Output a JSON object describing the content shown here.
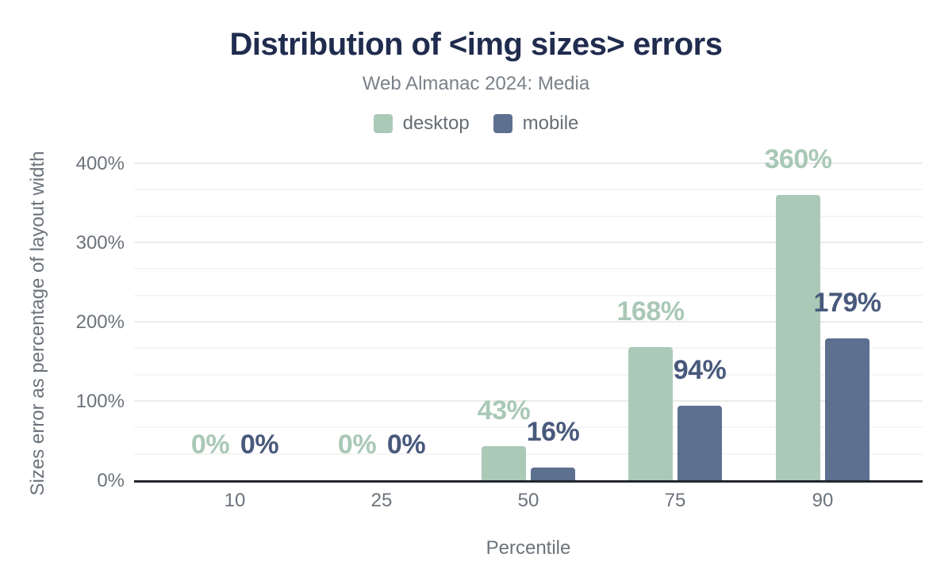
{
  "header": {
    "title": "Distribution of <img sizes> errors",
    "subtitle": "Web Almanac 2024: Media"
  },
  "legend": {
    "items": [
      {
        "label": "desktop",
        "color": "#abc9b7"
      },
      {
        "label": "mobile",
        "color": "#5d7090"
      }
    ]
  },
  "colors": {
    "title": "#202c4e",
    "subtitle": "#7a828a",
    "axis_text": "#6c737b",
    "axis_line": "#23272e",
    "desktop_bar": "#abc9b7",
    "mobile_bar": "#5d7090",
    "desktop_label": "#a9c8b6",
    "mobile_label": "#48597c",
    "gridline_major": "#ebebeb",
    "gridline_minor": "#f5f5f5"
  },
  "chart_data": {
    "type": "bar",
    "title": "Distribution of <img sizes> errors",
    "subtitle": "Web Almanac 2024: Media",
    "categories": [
      "10",
      "25",
      "50",
      "75",
      "90"
    ],
    "series": [
      {
        "name": "desktop",
        "color": "#abc9b7",
        "label_color": "#a9c8b6",
        "values": [
          0,
          0,
          43,
          168,
          360
        ],
        "data_labels": [
          "0%",
          "0%",
          "43%",
          "168%",
          "360%"
        ]
      },
      {
        "name": "mobile",
        "color": "#5d7090",
        "label_color": "#48597c",
        "values": [
          0,
          0,
          16,
          94,
          179
        ],
        "data_labels": [
          "0%",
          "0%",
          "16%",
          "94%",
          "179%"
        ]
      }
    ],
    "xlabel": "Percentile",
    "ylabel": "Sizes error as percentage of layout width",
    "y_ticks": [
      {
        "label": "0%",
        "value": 0
      },
      {
        "label": "100%",
        "value": 100
      },
      {
        "label": "200%",
        "value": 200
      },
      {
        "label": "300%",
        "value": 300
      },
      {
        "label": "400%",
        "value": 400
      }
    ],
    "ylim": [
      0,
      400
    ],
    "grid": "horizontal; major lines every 100%, minor lines every 33.33%",
    "legend_position": "top center"
  }
}
